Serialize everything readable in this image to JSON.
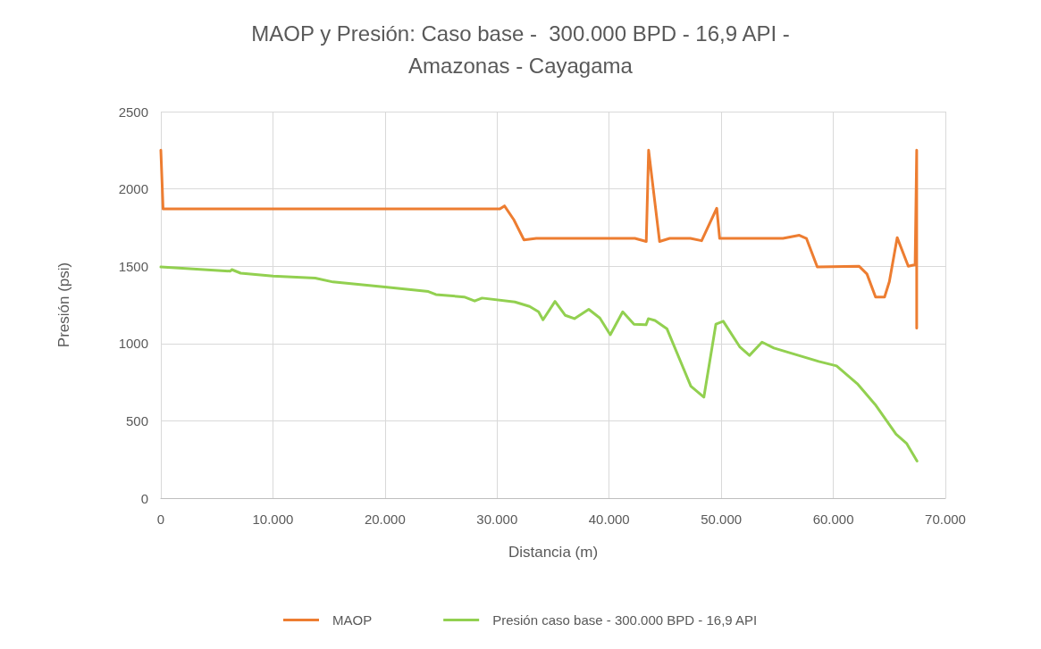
{
  "chart_data": {
    "type": "line",
    "title": "MAOP y Presión: Caso base -  300.000 BPD - 16,9 API -\nAmazonas - Cayagama",
    "xlabel": "Distancia (m)",
    "ylabel": "Presión (psi)",
    "xlim": [
      0,
      70000
    ],
    "xticks": [
      0,
      {
        "value": 10000,
        "label": "10.000"
      },
      {
        "value": 20000,
        "label": "20.000"
      },
      {
        "value": 30000,
        "label": "30.000"
      },
      {
        "value": 40000,
        "label": "40.000"
      },
      {
        "value": 50000,
        "label": "50.000"
      },
      {
        "value": 60000,
        "label": "60.000"
      },
      {
        "value": 70000,
        "label": "70.000"
      }
    ],
    "ylim": [
      0,
      2500
    ],
    "yticks": [
      0,
      500,
      1000,
      1500,
      2000,
      2500
    ],
    "grid": true,
    "legend": "bottom",
    "marker": "none",
    "line_style": "solid",
    "series": [
      {
        "name": "MAOP",
        "color": "#ed7d31",
        "x": [
          0,
          200,
          600,
          30250,
          30660,
          31500,
          32400,
          33500,
          42300,
          43310,
          43520,
          44500,
          45400,
          47250,
          48250,
          49600,
          49860,
          55510,
          56970,
          57600,
          58570,
          62290,
          63000,
          63770,
          64570,
          65000,
          65700,
          66690,
          67300,
          67440,
          67440
        ],
        "values": [
          2250,
          1870,
          1870,
          1870,
          1890,
          1800,
          1670,
          1680,
          1680,
          1660,
          2250,
          1660,
          1680,
          1680,
          1665,
          1875,
          1680,
          1680,
          1700,
          1680,
          1495,
          1500,
          1450,
          1300,
          1300,
          1400,
          1685,
          1500,
          1510,
          2250,
          1100
        ]
      },
      {
        "name": "Presión caso base - 300.000 BPD - 16,9 API",
        "color": "#92d050",
        "x": [
          0,
          6200,
          6330,
          7120,
          10000,
          13770,
          15360,
          20000,
          23870,
          24540,
          27070,
          28000,
          28660,
          31590,
          32900,
          33700,
          34100,
          35170,
          36090,
          36900,
          38180,
          39170,
          40100,
          41210,
          42220,
          43290,
          43500,
          44090,
          45150,
          47290,
          48450,
          49520,
          50180,
          51640,
          52520,
          53640,
          54700,
          58700,
          60290,
          62140,
          63740,
          65600,
          66530,
          67470
        ],
        "values": [
          1495,
          1468,
          1478,
          1455,
          1436,
          1423,
          1398,
          1365,
          1336,
          1317,
          1301,
          1275,
          1294,
          1269,
          1240,
          1205,
          1153,
          1272,
          1182,
          1161,
          1221,
          1165,
          1057,
          1205,
          1125,
          1121,
          1161,
          1149,
          1096,
          724,
          653,
          1125,
          1144,
          980,
          923,
          1009,
          971,
          884,
          855,
          740,
          605,
          413,
          355,
          240
        ]
      }
    ]
  }
}
